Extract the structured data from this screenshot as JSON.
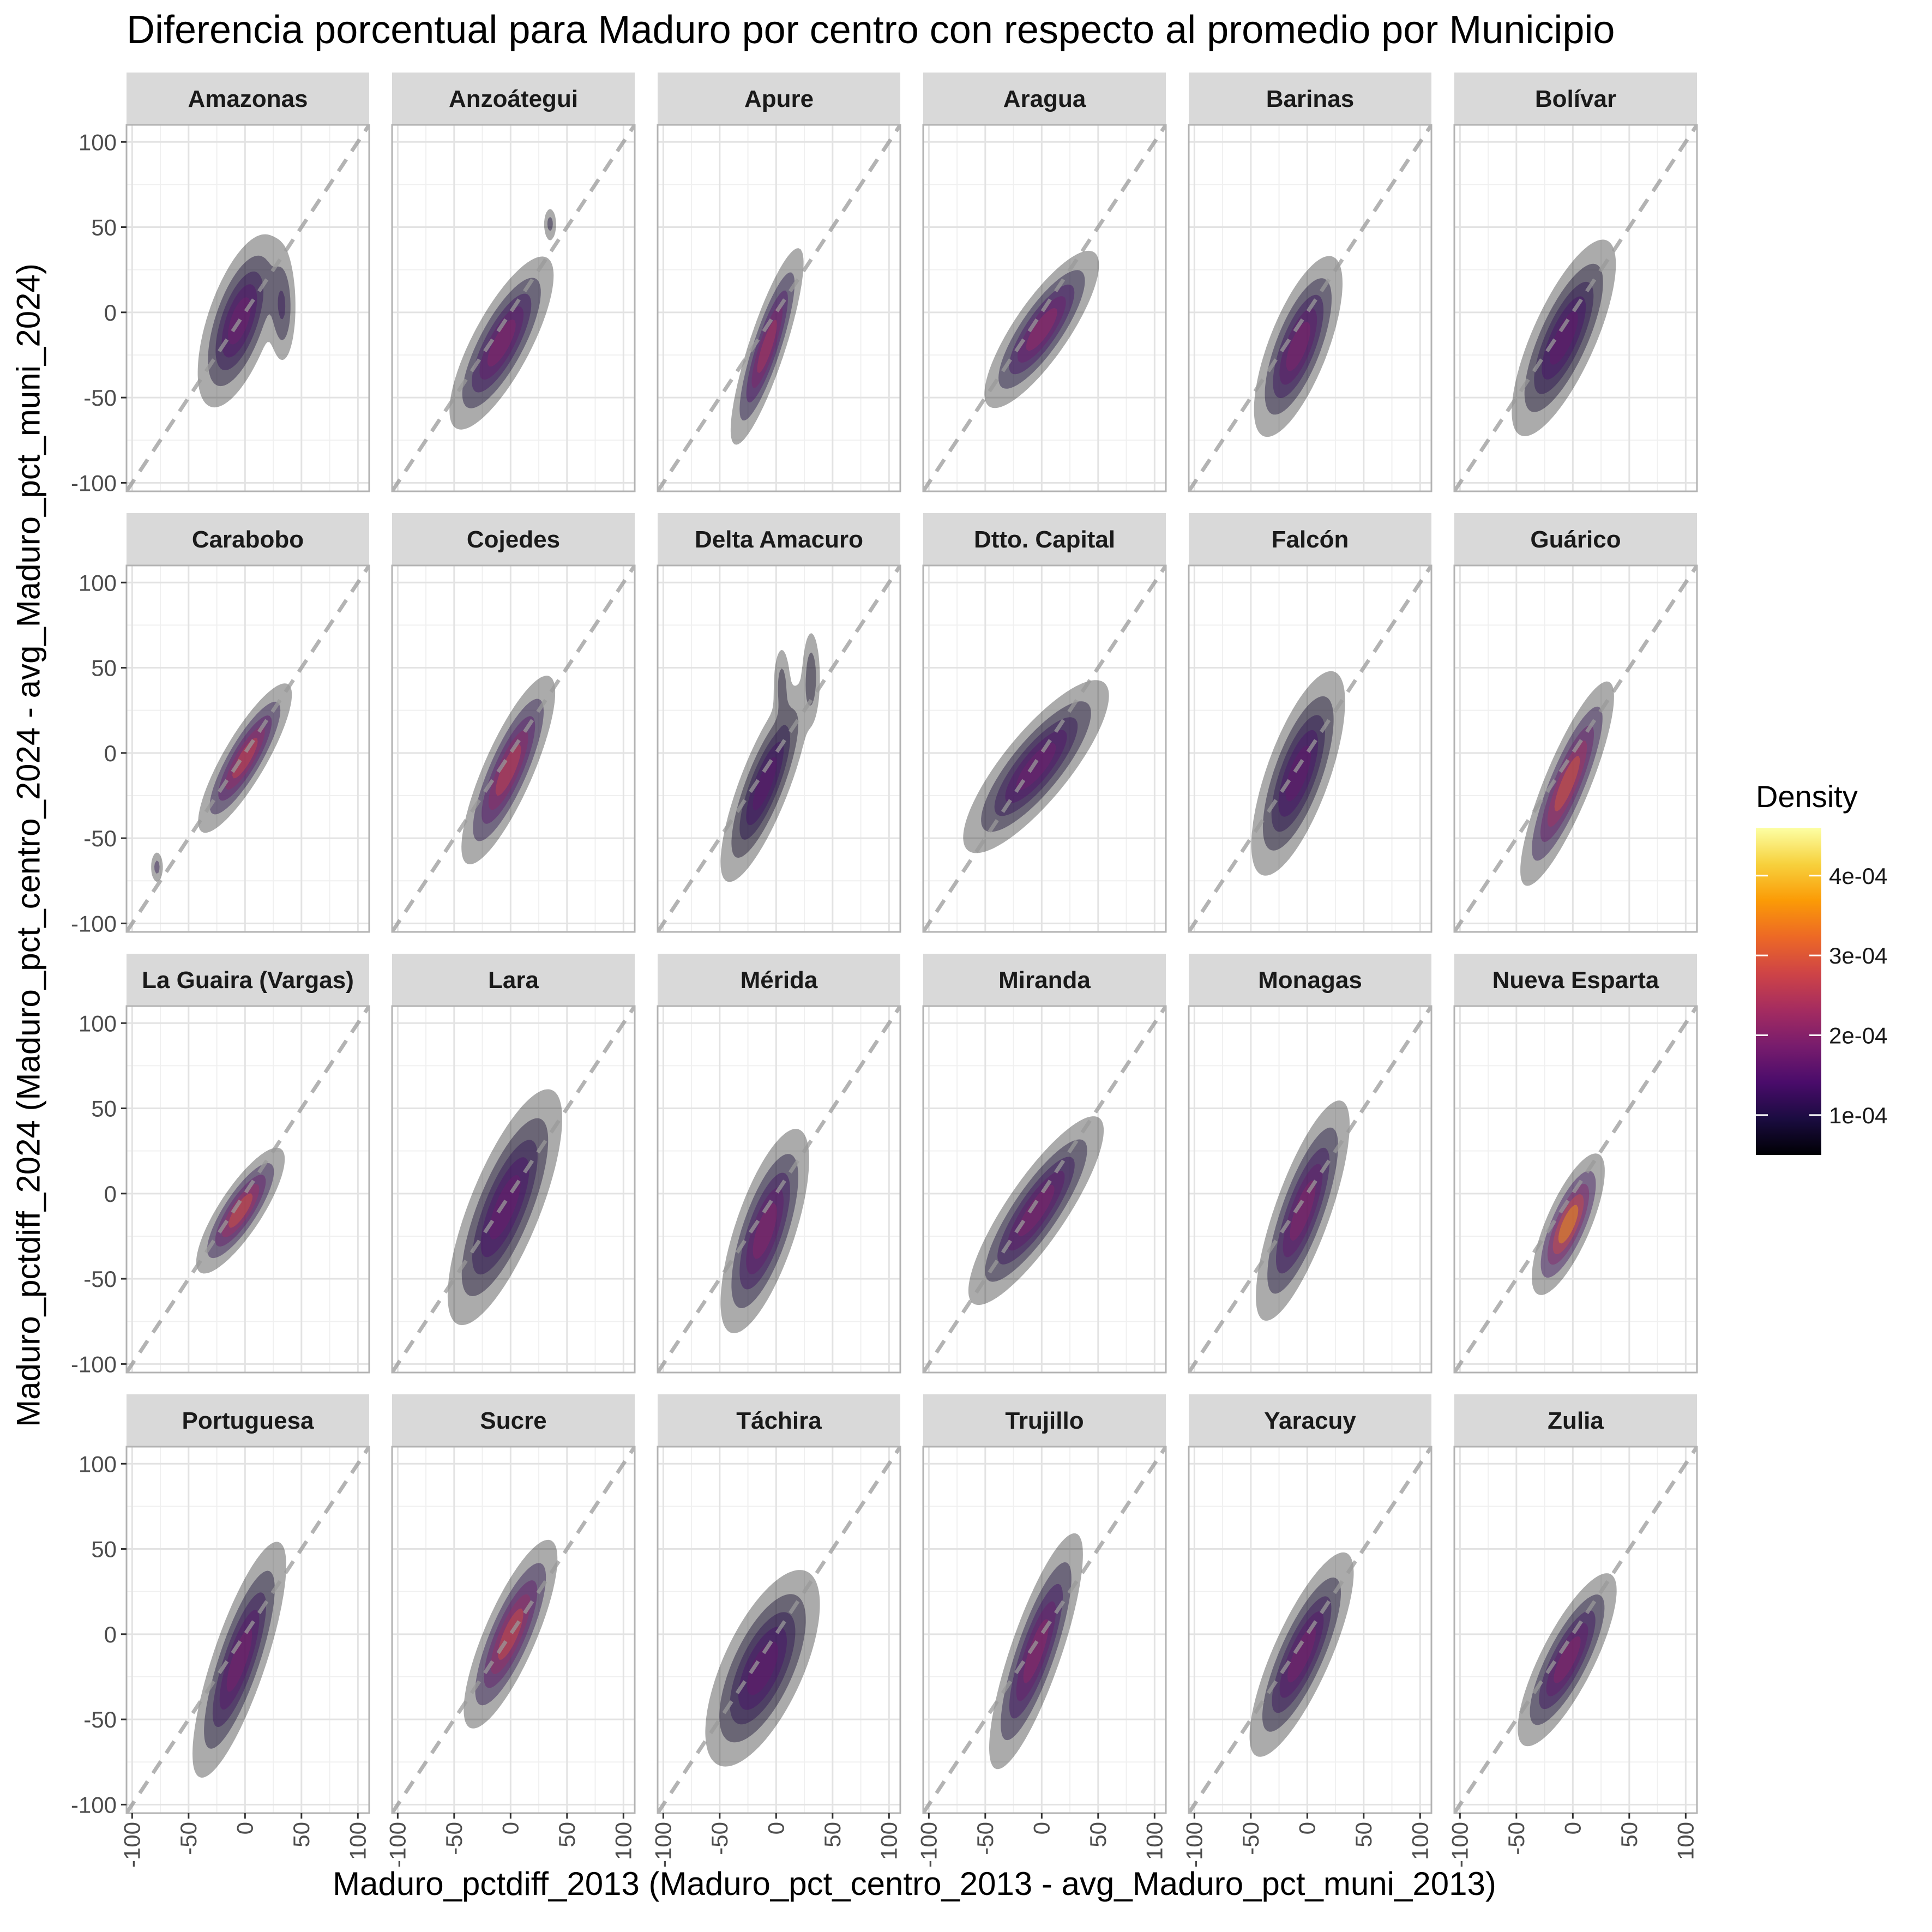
{
  "chart_data": {
    "type": "density2d",
    "title": "Diferencia porcentual para Maduro por centro con respecto al promedio por Municipio",
    "xlabel": "Maduro_pctdiff_2013 (Maduro_pct_centro_2013 - avg_Maduro_pct_muni_2013)",
    "ylabel": "Maduro_pctdiff_2024 (Maduro_pct_centro_2024 - avg_Maduro_pct_muni_2024)",
    "xlim": [
      -105,
      110
    ],
    "ylim": [
      -105,
      110
    ],
    "x_ticks": [
      -100,
      -50,
      0,
      50,
      100
    ],
    "y_ticks": [
      -100,
      -50,
      0,
      50,
      100
    ],
    "x_tick_labels": [
      "-100",
      "-50",
      "0",
      "50",
      "100"
    ],
    "y_tick_labels": [
      "-100",
      "-50",
      "0",
      "50",
      "100"
    ],
    "reference_line": {
      "slope": 1,
      "intercept": 0,
      "style": "dashed",
      "color": "#999999"
    },
    "grid": true,
    "facet_layout": {
      "rows": 4,
      "cols": 6
    },
    "legend": {
      "title": "Density",
      "position": "right",
      "range": [
        5e-05,
        0.00046
      ],
      "ticks": [
        0.0001,
        0.0002,
        0.0003,
        0.0004
      ],
      "tick_labels": [
        "1e-04",
        "2e-04",
        "3e-04",
        "4e-04"
      ],
      "colormap": [
        "#000004",
        "#1B0C41",
        "#4A0C6B",
        "#781C6D",
        "#A52C60",
        "#CF4446",
        "#ED6925",
        "#FB9B06",
        "#F7D13D",
        "#FCFFA4"
      ]
    },
    "facets": [
      {
        "name": "Amazonas",
        "cx": -5,
        "cy": -5,
        "sx": 16,
        "sy": 22,
        "r": 0.6,
        "peak": 0.00022,
        "extras": [
          {
            "cx": 33,
            "cy": 3,
            "sx": 6,
            "sy": 16,
            "r": 0,
            "w": 0.45
          }
        ]
      },
      {
        "name": "Anzoátegui",
        "cx": -8,
        "cy": -18,
        "sx": 20,
        "sy": 22,
        "r": 0.78,
        "peak": 0.00025,
        "extras": [
          {
            "cx": 35,
            "cy": 52,
            "sx": 3,
            "sy": 5,
            "r": 0,
            "w": 0.3
          }
        ]
      },
      {
        "name": "Apure",
        "cx": -8,
        "cy": -20,
        "sx": 14,
        "sy": 25,
        "r": 0.85,
        "peak": 0.0003,
        "extras": []
      },
      {
        "name": "Aragua",
        "cx": 0,
        "cy": -10,
        "sx": 22,
        "sy": 20,
        "r": 0.82,
        "peak": 0.00027,
        "extras": []
      },
      {
        "name": "Barinas",
        "cx": -8,
        "cy": -20,
        "sx": 17,
        "sy": 23,
        "r": 0.7,
        "peak": 0.00024,
        "extras": []
      },
      {
        "name": "Bolívar",
        "cx": -8,
        "cy": -15,
        "sx": 20,
        "sy": 25,
        "r": 0.75,
        "peak": 0.0002,
        "extras": []
      },
      {
        "name": "Carabobo",
        "cx": 0,
        "cy": -3,
        "sx": 18,
        "sy": 19,
        "r": 0.85,
        "peak": 0.00034,
        "extras": [
          {
            "cx": -78,
            "cy": -67,
            "sx": 3,
            "sy": 5,
            "r": 0,
            "w": 0.3
          }
        ]
      },
      {
        "name": "Cojedes",
        "cx": -2,
        "cy": -10,
        "sx": 18,
        "sy": 24,
        "r": 0.82,
        "peak": 0.00033,
        "extras": []
      },
      {
        "name": "Delta Amacuro",
        "cx": -10,
        "cy": -18,
        "sx": 17,
        "sy": 25,
        "r": 0.8,
        "peak": 0.00019,
        "extras": [
          {
            "cx": 31,
            "cy": 45,
            "sx": 4,
            "sy": 14,
            "r": 0,
            "w": 0.35
          },
          {
            "cx": 5,
            "cy": 40,
            "sx": 4,
            "sy": 12,
            "r": 0,
            "w": 0.3
          }
        ]
      },
      {
        "name": "Dtto. Capital",
        "cx": -5,
        "cy": -8,
        "sx": 28,
        "sy": 22,
        "r": 0.82,
        "peak": 0.00022,
        "extras": []
      },
      {
        "name": "Falcón",
        "cx": -8,
        "cy": -12,
        "sx": 18,
        "sy": 26,
        "r": 0.7,
        "peak": 0.0002,
        "extras": []
      },
      {
        "name": "Guárico",
        "cx": -5,
        "cy": -18,
        "sx": 18,
        "sy": 26,
        "r": 0.85,
        "peak": 0.00037,
        "extras": []
      },
      {
        "name": "La Guaira (Vargas)",
        "cx": -4,
        "cy": -10,
        "sx": 17,
        "sy": 16,
        "r": 0.82,
        "peak": 0.00036,
        "extras": []
      },
      {
        "name": "Lara",
        "cx": -5,
        "cy": -8,
        "sx": 22,
        "sy": 30,
        "r": 0.75,
        "peak": 0.00021,
        "extras": []
      },
      {
        "name": "Mérida",
        "cx": -10,
        "cy": -22,
        "sx": 17,
        "sy": 26,
        "r": 0.7,
        "peak": 0.00025,
        "extras": []
      },
      {
        "name": "Miranda",
        "cx": -5,
        "cy": -10,
        "sx": 26,
        "sy": 24,
        "r": 0.85,
        "peak": 0.00024,
        "extras": []
      },
      {
        "name": "Monagas",
        "cx": -4,
        "cy": -10,
        "sx": 18,
        "sy": 28,
        "r": 0.78,
        "peak": 0.00025,
        "extras": []
      },
      {
        "name": "Nueva Esparta",
        "cx": -4,
        "cy": -18,
        "sx": 14,
        "sy": 18,
        "r": 0.75,
        "peak": 0.00045,
        "extras": []
      },
      {
        "name": "Portuguesa",
        "cx": -5,
        "cy": -15,
        "sx": 18,
        "sy": 30,
        "r": 0.8,
        "peak": 0.00023,
        "extras": []
      },
      {
        "name": "Sucre",
        "cx": 0,
        "cy": 0,
        "sx": 18,
        "sy": 24,
        "r": 0.8,
        "peak": 0.00035,
        "extras": []
      },
      {
        "name": "Táchira",
        "cx": -12,
        "cy": -20,
        "sx": 22,
        "sy": 25,
        "r": 0.65,
        "peak": 0.0002,
        "extras": []
      },
      {
        "name": "Trujillo",
        "cx": -5,
        "cy": -10,
        "sx": 18,
        "sy": 30,
        "r": 0.82,
        "peak": 0.00026,
        "extras": []
      },
      {
        "name": "Yaracuy",
        "cx": -5,
        "cy": -12,
        "sx": 20,
        "sy": 26,
        "r": 0.8,
        "peak": 0.00023,
        "extras": []
      },
      {
        "name": "Zulia",
        "cx": -5,
        "cy": -15,
        "sx": 19,
        "sy": 22,
        "r": 0.8,
        "peak": 0.00025,
        "extras": []
      }
    ]
  }
}
